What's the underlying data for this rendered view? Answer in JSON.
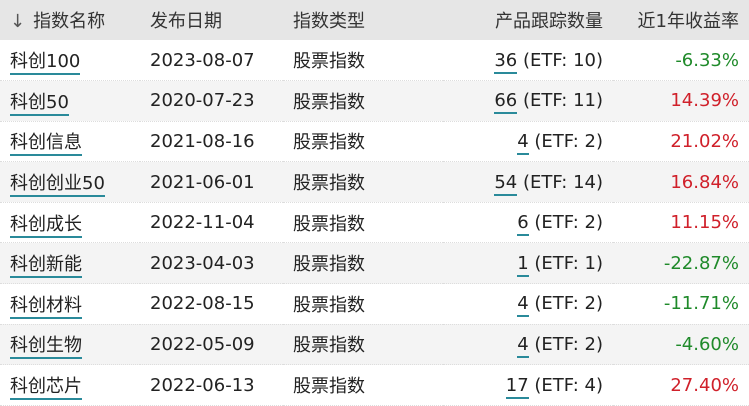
{
  "colors": {
    "positive": "#d0202a",
    "negative": "#1f8a2a",
    "link_underline": "#2a8a9a",
    "header_bg": "#e6e6e6"
  },
  "header": {
    "sort_icon": "arrow-down-icon",
    "sort_glyph": "↓",
    "name": "指数名称",
    "date": "发布日期",
    "type": "指数类型",
    "count": "产品跟踪数量",
    "return": "近1年收益率"
  },
  "rows": [
    {
      "name": "科创100",
      "date": "2023-08-07",
      "type": "股票指数",
      "count": "36",
      "etf": " (ETF: 10)",
      "ret": "-6.33%",
      "sign": "neg"
    },
    {
      "name": "科创50",
      "date": "2020-07-23",
      "type": "股票指数",
      "count": "66",
      "etf": " (ETF: 11)",
      "ret": "14.39%",
      "sign": "pos"
    },
    {
      "name": "科创信息",
      "date": "2021-08-16",
      "type": "股票指数",
      "count": "4",
      "etf": " (ETF: 2)",
      "ret": "21.02%",
      "sign": "pos"
    },
    {
      "name": "科创创业50",
      "date": "2021-06-01",
      "type": "股票指数",
      "count": "54",
      "etf": " (ETF: 14)",
      "ret": "16.84%",
      "sign": "pos"
    },
    {
      "name": "科创成长",
      "date": "2022-11-04",
      "type": "股票指数",
      "count": "6",
      "etf": " (ETF: 2)",
      "ret": "11.15%",
      "sign": "pos"
    },
    {
      "name": "科创新能",
      "date": "2023-04-03",
      "type": "股票指数",
      "count": "1",
      "etf": " (ETF: 1)",
      "ret": "-22.87%",
      "sign": "neg"
    },
    {
      "name": "科创材料",
      "date": "2022-08-15",
      "type": "股票指数",
      "count": "4",
      "etf": " (ETF: 2)",
      "ret": "-11.71%",
      "sign": "neg"
    },
    {
      "name": "科创生物",
      "date": "2022-05-09",
      "type": "股票指数",
      "count": "4",
      "etf": " (ETF: 2)",
      "ret": "-4.60%",
      "sign": "neg"
    },
    {
      "name": "科创芯片",
      "date": "2022-06-13",
      "type": "股票指数",
      "count": "17",
      "etf": " (ETF: 4)",
      "ret": "27.40%",
      "sign": "pos"
    }
  ]
}
